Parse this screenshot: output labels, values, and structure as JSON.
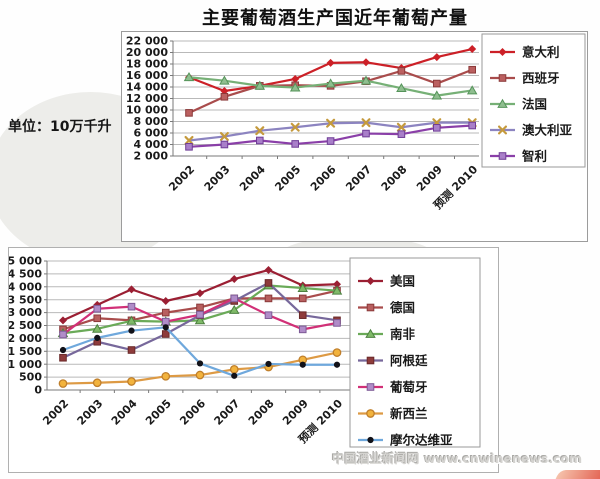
{
  "page": {
    "title": "主要葡萄酒生产国近年葡萄产量",
    "unit_label": "单位：10万千升",
    "watermark": "中国酒业新闻网 www.cnwinenews.com"
  },
  "colors": {
    "grid": "#b9b9b9",
    "axis": "#7a7a7a",
    "chart_border": "#9c9c9c",
    "legend_border": "#9a9a9a",
    "text": "#1a1a1a"
  },
  "chart_data": [
    {
      "id": "top",
      "type": "line",
      "title": "主要葡萄酒生产国近年葡萄产量",
      "xlabel": "",
      "ylabel": "单位：10万千升",
      "categories": [
        "2002",
        "2003",
        "2004",
        "2005",
        "2006",
        "2007",
        "2008",
        "2009",
        "预测 2010"
      ],
      "ylim": [
        2000,
        22000
      ],
      "ytick_step": 2000,
      "grid": true,
      "legend_position": "right",
      "series": [
        {
          "name": "意大利",
          "color": "#cc2027",
          "marker": "diamond",
          "marker_fill": "#cc2027",
          "marker_stroke": "none",
          "values": [
            15700,
            13300,
            14200,
            15400,
            18200,
            18300,
            17300,
            19200,
            20600
          ]
        },
        {
          "name": "西班牙",
          "color": "#a94c4c",
          "marker": "square",
          "marker_fill": "#bb6060",
          "marker_stroke": "#8b3a3a",
          "values": [
            9500,
            12300,
            14200,
            14300,
            14200,
            15000,
            16800,
            14600,
            17000
          ]
        },
        {
          "name": "法国",
          "color": "#76b076",
          "marker": "triangle",
          "marker_fill": "#8fbe8f",
          "marker_stroke": "#55945a",
          "values": [
            15700,
            15100,
            14200,
            13900,
            14600,
            15100,
            13800,
            12500,
            13400
          ]
        },
        {
          "name": "澳大利亚",
          "color": "#8c84c0",
          "marker": "xmark",
          "marker_fill": "#c59a3d",
          "marker_stroke": "none",
          "values": [
            4700,
            5400,
            6400,
            7000,
            7700,
            7800,
            7000,
            7800,
            7800
          ]
        },
        {
          "name": "智利",
          "color": "#8a3fa8",
          "marker": "square",
          "marker_fill": "#a97fc9",
          "marker_stroke": "#6f3d96",
          "values": [
            3600,
            4000,
            4700,
            4100,
            4600,
            5900,
            5800,
            6900,
            7300
          ]
        }
      ]
    },
    {
      "id": "bottom",
      "type": "line",
      "title": "",
      "xlabel": "",
      "ylabel": "单位：10万千升",
      "categories": [
        "2002",
        "2003",
        "2004",
        "2005",
        "2006",
        "2007",
        "2008",
        "2009",
        "预测 2010"
      ],
      "ylim": [
        0,
        5000
      ],
      "ytick_step": 500,
      "grid": true,
      "legend_position": "right",
      "series": [
        {
          "name": "美国",
          "color": "#9b1f33",
          "marker": "diamond",
          "marker_fill": "#9b1f33",
          "marker_stroke": "none",
          "values": [
            2700,
            3300,
            3900,
            3450,
            3750,
            4300,
            4650,
            4050,
            4100
          ]
        },
        {
          "name": "德国",
          "color": "#a94c4c",
          "marker": "square",
          "marker_fill": "#b85f5f",
          "marker_stroke": "#8b3a3a",
          "values": [
            2350,
            2780,
            2700,
            3000,
            3200,
            3550,
            3550,
            3550,
            3850
          ]
        },
        {
          "name": "南非",
          "color": "#6aaa58",
          "marker": "triangle",
          "marker_fill": "#7fba68",
          "marker_stroke": "#4d8040",
          "values": [
            2200,
            2370,
            2680,
            2650,
            2700,
            3100,
            4050,
            3950,
            3850
          ]
        },
        {
          "name": "阿根廷",
          "color": "#77689b",
          "marker": "square",
          "marker_fill": "#8e3b3b",
          "marker_stroke": "#6a2a2a",
          "values": [
            1250,
            1870,
            1550,
            2170,
            2900,
            3450,
            4150,
            2900,
            2700
          ]
        },
        {
          "name": "葡萄牙",
          "color": "#d13077",
          "marker": "square",
          "marker_fill": "#b08cc8",
          "marker_stroke": "#7d5a96",
          "values": [
            2150,
            3150,
            3230,
            2650,
            2920,
            3550,
            2900,
            2350,
            2600
          ]
        },
        {
          "name": "新西兰",
          "color": "#dd9a44",
          "marker": "circle",
          "marker_fill": "#f2b33d",
          "marker_stroke": "#c07f2b",
          "values": [
            250,
            280,
            330,
            530,
            580,
            800,
            890,
            1170,
            1450
          ]
        },
        {
          "name": "摩尔达维亚",
          "color": "#6fa8dc",
          "marker": "dot",
          "marker_fill": "#111118",
          "marker_stroke": "none",
          "values": [
            1550,
            2020,
            2300,
            2430,
            1030,
            550,
            1010,
            980,
            980
          ]
        }
      ]
    }
  ]
}
